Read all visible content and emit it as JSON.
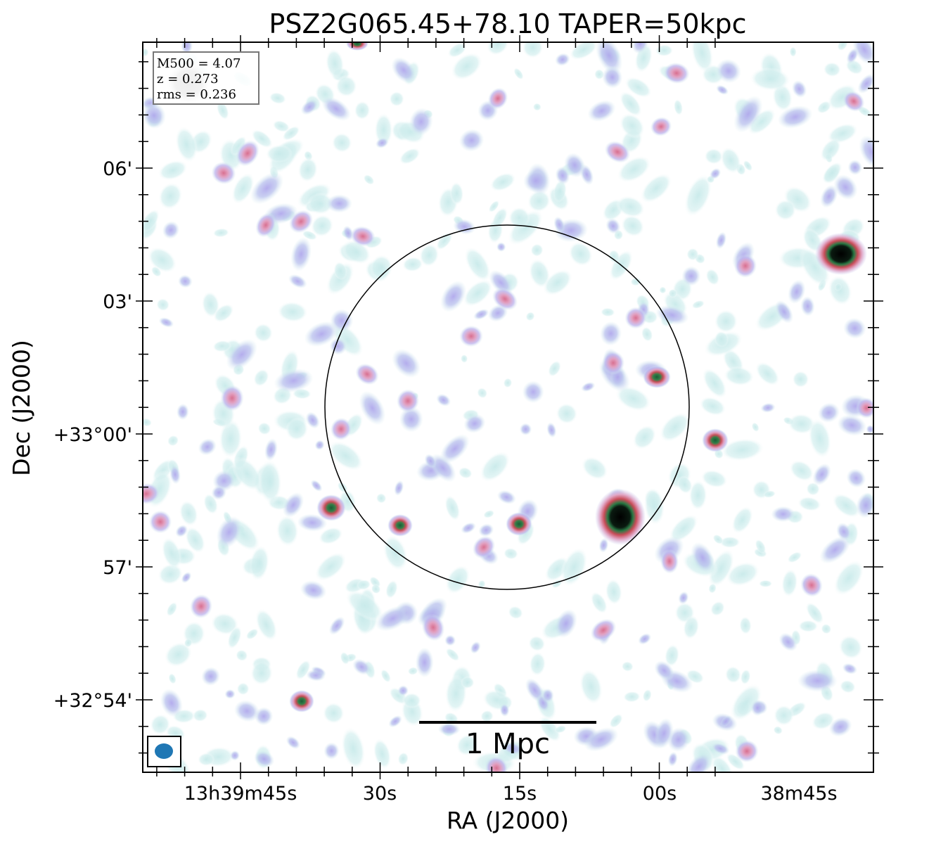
{
  "title": "PSZ2G065.45+78.10 TAPER=50kpc",
  "xlabel": "RA (J2000)",
  "ylabel": "Dec (J2000)",
  "ra_ticks": [
    "13h39m45s",
    "30s",
    "15s",
    "00s",
    "38m45s"
  ],
  "dec_ticks": [
    "06'",
    "03'",
    "+33°00'",
    "57'",
    "+32°54'"
  ],
  "info": {
    "m500": "M500 = 4.07",
    "z": "z = 0.273",
    "rms": "rms = 0.236"
  },
  "scale_bar_label": "1 Mpc",
  "colors": {
    "faint": "#c8eaea",
    "lavender": "#b4b4ee",
    "pink": "#e49ab8",
    "red": "#cc5060",
    "green": "#246a3c",
    "black": "#000000",
    "beam": "#1f77b4"
  }
}
